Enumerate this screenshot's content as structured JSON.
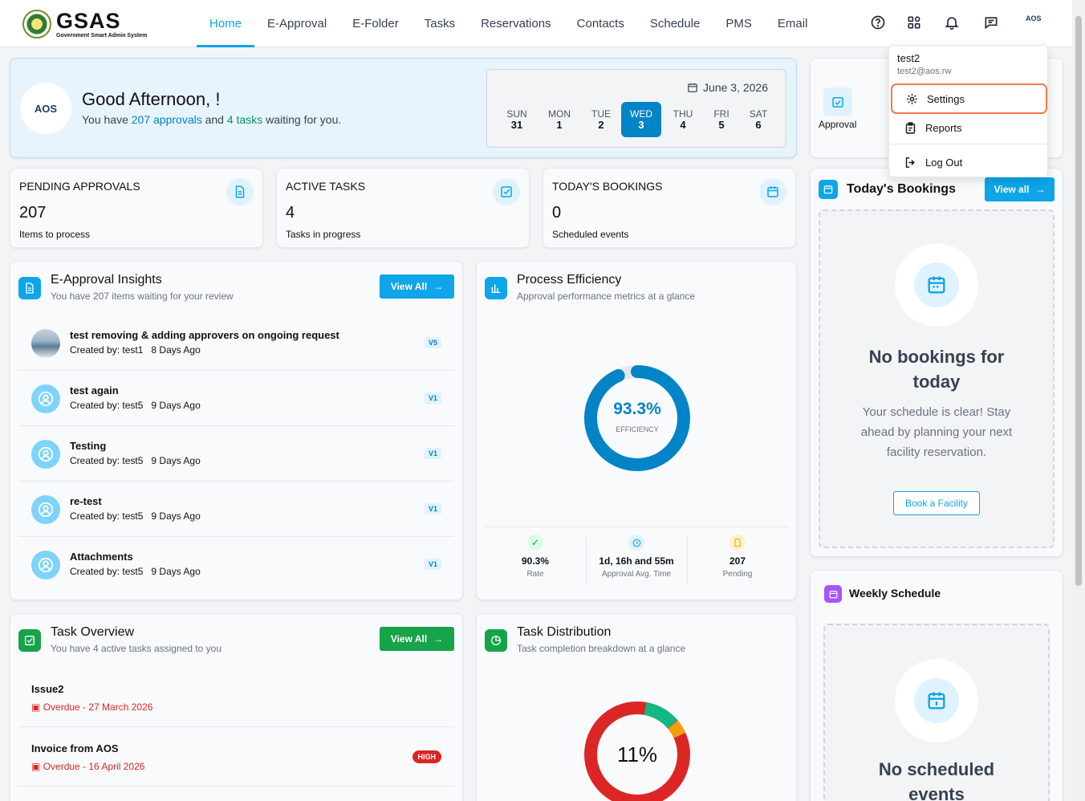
{
  "brand": {
    "name": "GSAS",
    "tagline": "Government Smart Admin System"
  },
  "nav": [
    {
      "label": "Home"
    },
    {
      "label": "E-Approval"
    },
    {
      "label": "E-Folder"
    },
    {
      "label": "Tasks"
    },
    {
      "label": "Reservations"
    },
    {
      "label": "Contacts"
    },
    {
      "label": "Schedule"
    },
    {
      "label": "PMS"
    },
    {
      "label": "Email"
    }
  ],
  "topicons": [
    "help-icon",
    "apps-icon",
    "bell-icon",
    "chat-icon"
  ],
  "avatar_label": "AOS",
  "welcome": {
    "logo": "AOS",
    "greeting": "Good Afternoon, !",
    "pre": "You have ",
    "approvals": "207 approvals",
    "mid": " and ",
    "tasks": "4 tasks",
    "post": " waiting for you."
  },
  "calendar": {
    "date": "June 3, 2026",
    "days": [
      {
        "d": "SUN",
        "n": "31"
      },
      {
        "d": "MON",
        "n": "1"
      },
      {
        "d": "TUE",
        "n": "2"
      },
      {
        "d": "WED",
        "n": "3"
      },
      {
        "d": "THU",
        "n": "4"
      },
      {
        "d": "FRI",
        "n": "5"
      },
      {
        "d": "SAT",
        "n": "6"
      }
    ]
  },
  "stats": [
    {
      "label": "PENDING APPROVALS",
      "value": "207",
      "caption": "Items to process"
    },
    {
      "label": "ACTIVE TASKS",
      "value": "4",
      "caption": "Tasks in progress"
    },
    {
      "label": "TODAY'S BOOKINGS",
      "value": "0",
      "caption": "Scheduled events"
    }
  ],
  "approvals": {
    "title": "E-Approval Insights",
    "subtitle": "You have 207 items waiting for your review",
    "view_all": "View All",
    "items": [
      {
        "title": "test removing & adding approvers on ongoing request",
        "by": "Created by: test1",
        "ago": "8 Days Ago",
        "v": "V5"
      },
      {
        "title": "test again",
        "by": "Created by: test5",
        "ago": "9 Days Ago",
        "v": "V1"
      },
      {
        "title": "Testing",
        "by": "Created by: test5",
        "ago": "9 Days Ago",
        "v": "V1"
      },
      {
        "title": "re-test",
        "by": "Created by: test5",
        "ago": "9 Days Ago",
        "v": "V1"
      },
      {
        "title": "Attachments",
        "by": "Created by: test5",
        "ago": "9 Days Ago",
        "v": "V1"
      }
    ]
  },
  "efficiency": {
    "title": "Process Efficiency",
    "subtitle": "Approval performance metrics at a glance",
    "value": "93.3%",
    "label": "EFFICIENCY",
    "fraction": 0.933,
    "metrics": [
      {
        "value": "90.3%",
        "label": "Rate"
      },
      {
        "value": "1d, 16h and 55m",
        "label": "Approval Avg. Time"
      },
      {
        "value": "207",
        "label": "Pending"
      }
    ]
  },
  "tasks": {
    "title": "Task Overview",
    "subtitle": "You have 4 active tasks assigned to you",
    "view_all": "View All",
    "items": [
      {
        "title": "Issue2",
        "due": "Overdue - 27 March 2026",
        "badge": ""
      },
      {
        "title": "Invoice from AOS",
        "due": "Overdue - 16 April 2026",
        "badge": "HIGH"
      }
    ]
  },
  "distribution": {
    "title": "Task Distribution",
    "subtitle": "Task completion breakdown at a glance",
    "value": "11%"
  },
  "quick": {
    "approval": "Approval"
  },
  "bookings": {
    "title": "Today's Bookings",
    "view_all": "View all",
    "empty_title": "No bookings for today",
    "empty_text": "Your schedule is clear! Stay ahead by planning your next facility reservation.",
    "cta": "Book a Facility"
  },
  "weekly": {
    "title": "Weekly Schedule",
    "empty_title": "No scheduled events"
  },
  "menu": {
    "user": "test2",
    "email": "test2@aos.rw",
    "items": [
      {
        "label": "Settings"
      },
      {
        "label": "Reports"
      },
      {
        "label": "Log Out"
      }
    ]
  },
  "colors": {
    "accent": "#0ea5e9",
    "primary": "#0284c7",
    "success": "#16a34a",
    "danger": "#dc2626"
  }
}
